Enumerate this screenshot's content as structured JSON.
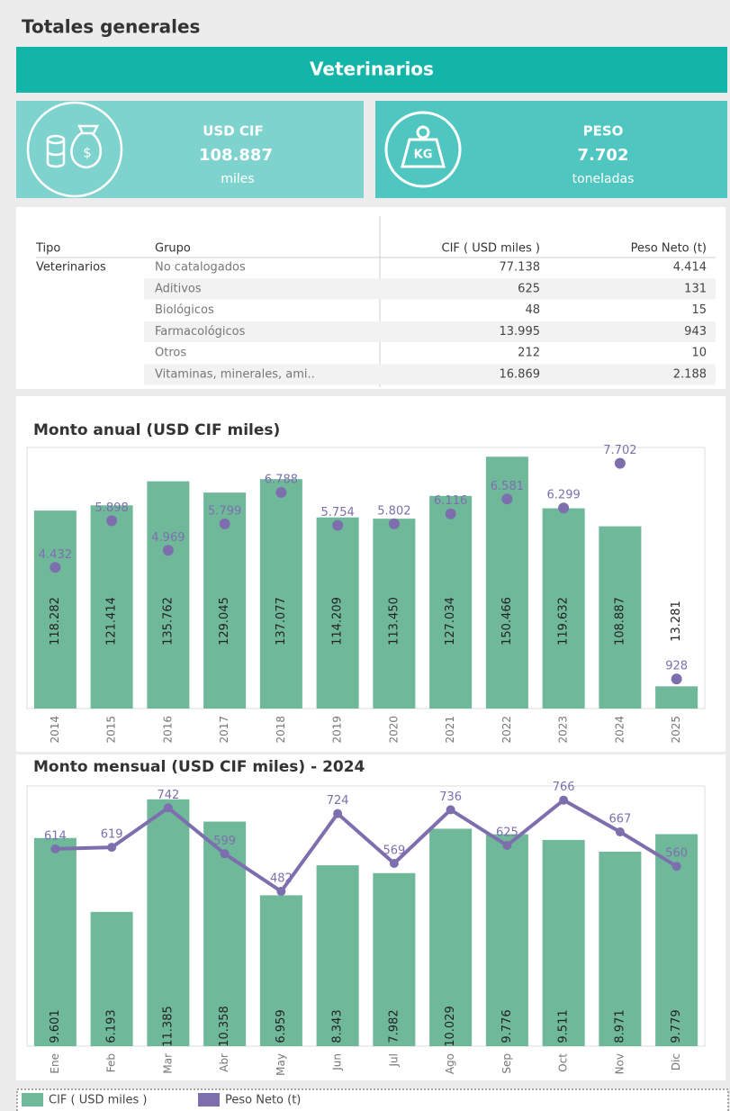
{
  "header": {
    "title": "Totales generales"
  },
  "banner": {
    "title": "Veterinarios"
  },
  "kpis": [
    {
      "label": "USD CIF",
      "value": "108.887",
      "unit": "miles"
    },
    {
      "label": "PESO",
      "value": "7.702",
      "unit": "toneladas"
    }
  ],
  "table": {
    "columns": [
      "Tipo",
      "Grupo",
      "CIF ( USD miles )",
      "Peso Neto (t)"
    ],
    "tipo": "Veterinarios",
    "rows": [
      [
        "No catalogados",
        "77.138",
        "4.414"
      ],
      [
        "Aditivos",
        "625",
        "131"
      ],
      [
        "Biológicos",
        "48",
        "15"
      ],
      [
        "Farmacológicos",
        "13.995",
        "943"
      ],
      [
        "Otros",
        "212",
        "10"
      ],
      [
        "Vitaminas, minerales, ami..",
        "16.869",
        "2.188"
      ]
    ]
  },
  "chart_data": [
    {
      "type": "bar",
      "title": "Monto anual (USD CIF miles)",
      "categories": [
        "2014",
        "2015",
        "2016",
        "2017",
        "2018",
        "2019",
        "2020",
        "2021",
        "2022",
        "2023",
        "2024",
        "2025"
      ],
      "series": [
        {
          "name": "CIF ( USD miles )",
          "color": "#6fb89a",
          "mark": "bar",
          "values": [
            118282,
            121414,
            135762,
            129045,
            137077,
            114209,
            113450,
            127034,
            150466,
            119632,
            108887,
            13281
          ],
          "value_labels": [
            "118.282",
            "121.414",
            "135.762",
            "129.045",
            "137.077",
            "114.209",
            "113.450",
            "127.034",
            "150.466",
            "119.632",
            "108.887",
            "13.281"
          ]
        },
        {
          "name": "Peso Neto (t)",
          "color": "#7d6fae",
          "mark": "dot",
          "axis": "y2",
          "values": [
            4432,
            5898,
            4969,
            5799,
            6788,
            5754,
            5802,
            6116,
            6581,
            6299,
            7702,
            928
          ],
          "value_labels": [
            "4.432",
            "5.898",
            "4.969",
            "5.799",
            "6.788",
            "5.754",
            "5.802",
            "6.116",
            "6.581",
            "6.299",
            "7.702",
            "928"
          ]
        }
      ],
      "ylim": [
        0,
        156000
      ],
      "y2lim": [
        0,
        8200
      ]
    },
    {
      "type": "bar",
      "title": "Monto mensual (USD CIF miles) - 2024",
      "categories": [
        "Ene",
        "Feb",
        "Mar",
        "Abr",
        "May",
        "Jun",
        "Jul",
        "Ago",
        "Sep",
        "Oct",
        "Nov",
        "Dic"
      ],
      "series": [
        {
          "name": "CIF ( USD miles )",
          "color": "#6fb89a",
          "mark": "bar",
          "values": [
            9601,
            6193,
            11385,
            10358,
            6959,
            8343,
            7982,
            10029,
            9776,
            9511,
            8971,
            9779
          ],
          "value_labels": [
            "9.601",
            "6.193",
            "11.385",
            "10.358",
            "6.959",
            "8.343",
            "7.982",
            "10.029",
            "9.776",
            "9.511",
            "8.971",
            "9.779"
          ]
        },
        {
          "name": "Peso Neto (t)",
          "color": "#7d6fae",
          "mark": "line",
          "axis": "y2",
          "values": [
            614,
            619,
            742,
            599,
            482,
            724,
            569,
            736,
            625,
            766,
            667,
            560
          ]
        }
      ],
      "ylim": [
        0,
        12000
      ],
      "y2lim": [
        0,
        810
      ]
    }
  ]
}
